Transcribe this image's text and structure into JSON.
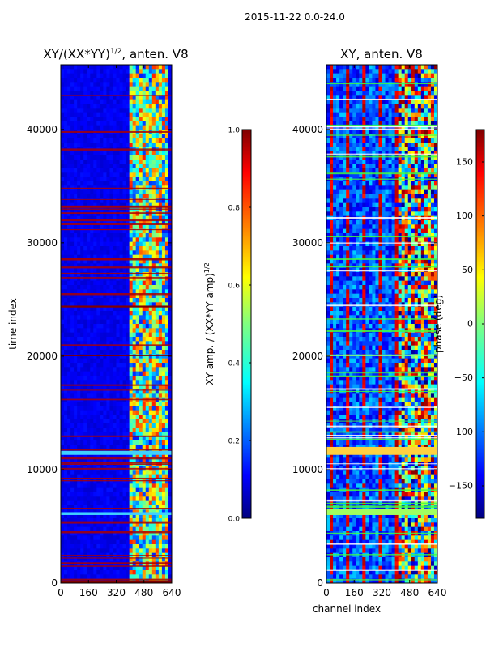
{
  "suptitle": "2015-11-22 0.0-24.0",
  "colors": {
    "jet": [
      "#00007f",
      "#0000ff",
      "#0080ff",
      "#00ffff",
      "#80ff80",
      "#ffff00",
      "#ff8000",
      "#ff0000",
      "#7f0000"
    ]
  },
  "chart_data": [
    {
      "type": "heatmap",
      "title_main": "XY/(XX*YY)",
      "title_sup": "1/2",
      "title_tail": ", anten. V8",
      "xlabel": "",
      "ylabel": "time index",
      "x_ticks": [
        "0",
        "160",
        "320",
        "480",
        "640"
      ],
      "x_range": [
        0,
        640
      ],
      "y_ticks": [
        "0",
        "10000",
        "20000",
        "30000",
        "40000"
      ],
      "y_range": [
        0,
        45700
      ],
      "colorbar": {
        "label_main": "XY amp. / (XX*YY amp)",
        "label_sup": "1/2",
        "range": [
          0.0,
          1.0
        ],
        "ticks": [
          "0.0",
          "0.2",
          "0.4",
          "0.6",
          "0.8",
          "1.0"
        ]
      }
    },
    {
      "type": "heatmap",
      "title_main": "XY, anten. V8",
      "xlabel": "channel index",
      "ylabel": "",
      "x_ticks": [
        "0",
        "160",
        "320",
        "480",
        "640"
      ],
      "x_range": [
        0,
        640
      ],
      "y_ticks": [
        "0",
        "10000",
        "20000",
        "30000",
        "40000"
      ],
      "y_range": [
        0,
        45700
      ],
      "colorbar": {
        "label_main": "phase (deg)",
        "range": [
          -180,
          180
        ],
        "ticks": [
          "−150",
          "−100",
          "−50",
          "0",
          "50",
          "100",
          "150"
        ]
      }
    }
  ]
}
